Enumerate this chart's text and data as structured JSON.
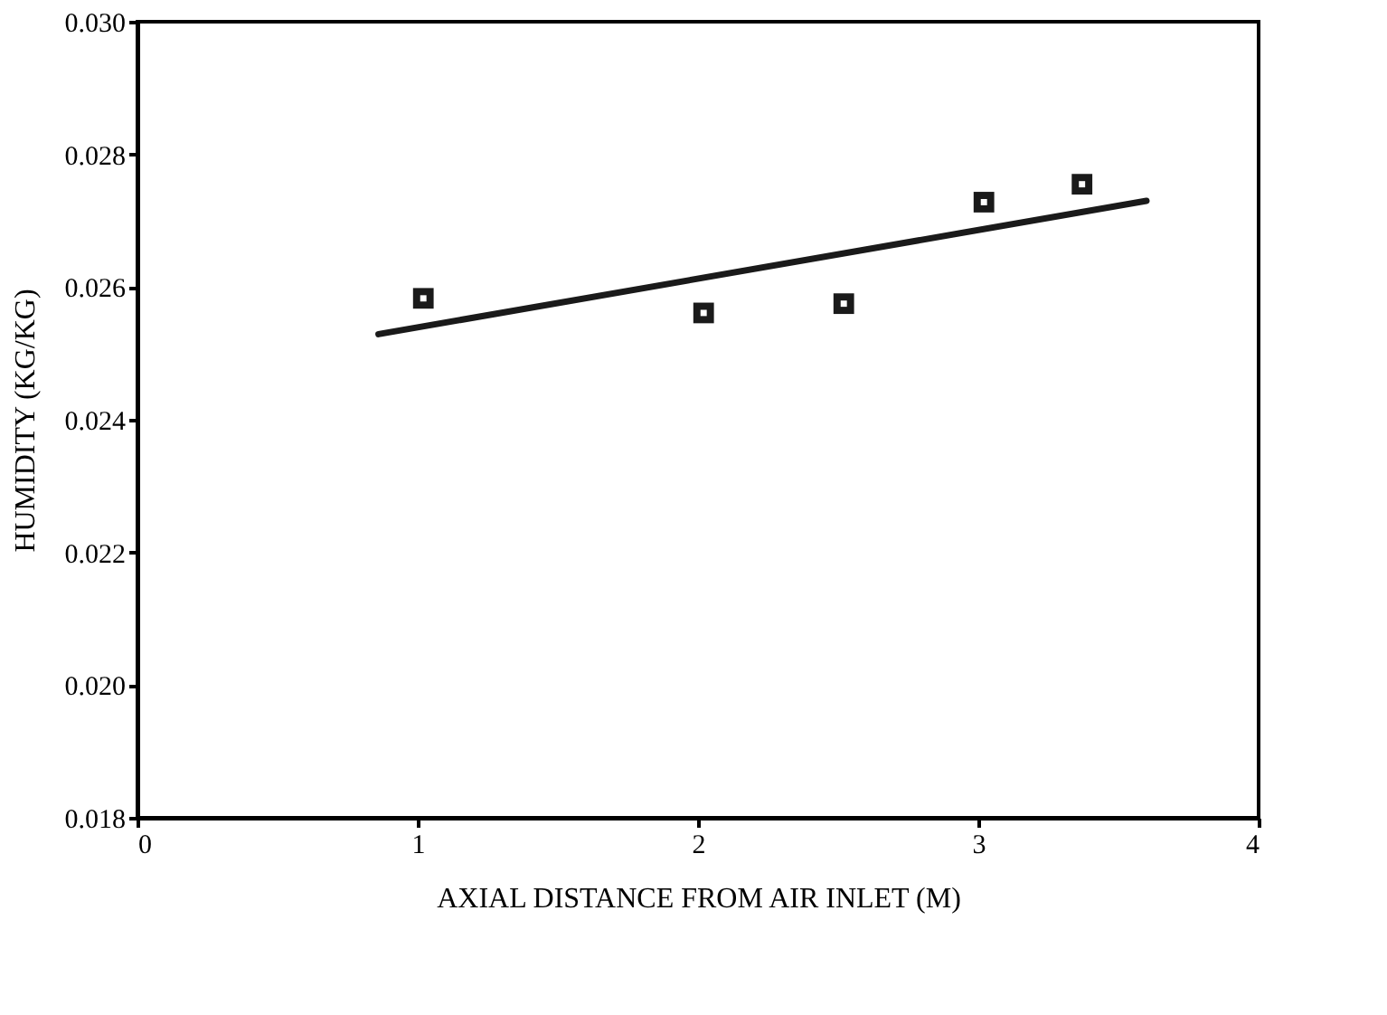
{
  "chart_data": {
    "type": "scatter",
    "xlabel": "AXIAL DISTANCE FROM AIR INLET (M)",
    "ylabel": "HUMIDITY (KG/KG)",
    "xlim": [
      0,
      4
    ],
    "xticks": [
      0,
      1,
      2,
      3,
      4
    ],
    "ylim": [
      0.018,
      0.03
    ],
    "yticks": [
      {
        "value": 0.018,
        "label": "0.018"
      },
      {
        "value": 0.02,
        "label": "0.020"
      },
      {
        "value": 0.022,
        "label": "0.022"
      },
      {
        "value": 0.024,
        "label": "0.024"
      },
      {
        "value": 0.026,
        "label": "0.026"
      },
      {
        "value": 0.028,
        "label": "0.028"
      },
      {
        "value": 0.03,
        "label": "0.030"
      }
    ],
    "grid": false,
    "marker": "square",
    "series": [
      {
        "color": "#1a1a1a",
        "x": [
          1.02,
          2.02,
          2.52,
          3.02,
          3.37
        ],
        "values": [
          0.02583,
          0.02561,
          0.02575,
          0.02728,
          0.02755
        ]
      },
      {
        "type": "line",
        "color": "#1a1a1a",
        "marker": "none",
        "line_style": "solid",
        "x": [
          0.86,
          3.6
        ],
        "values": [
          0.02529,
          0.0273
        ]
      }
    ]
  }
}
